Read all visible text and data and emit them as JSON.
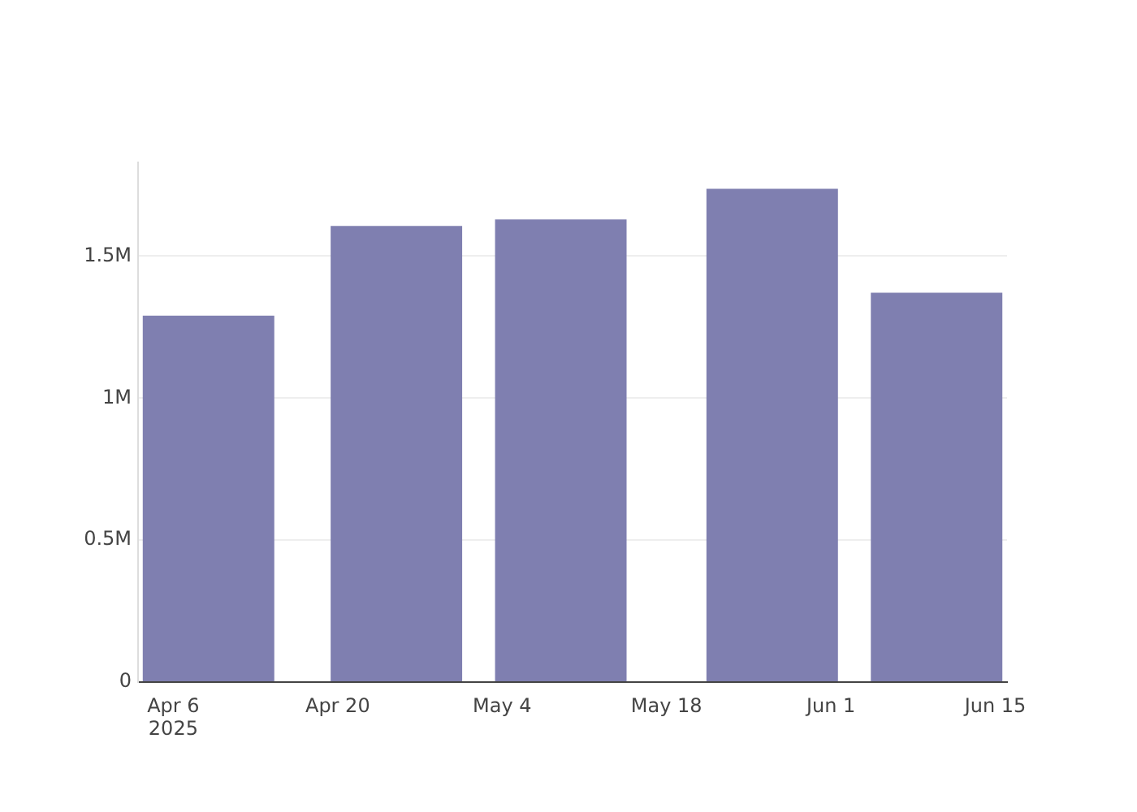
{
  "chart_data": {
    "type": "bar",
    "x": [
      "2025-04-09",
      "2025-04-25",
      "2025-05-09",
      "2025-05-27",
      "2025-06-10"
    ],
    "values": [
      1290000,
      1606000,
      1629000,
      1737000,
      1371000
    ],
    "color": "#7f7fb0",
    "xlim": [
      "2025-04-03",
      "2025-06-16"
    ],
    "xticks": [
      {
        "value": "2025-04-06",
        "label": "Apr 6\n2025"
      },
      {
        "value": "2025-04-20",
        "label": "Apr 20"
      },
      {
        "value": "2025-05-04",
        "label": "May 4"
      },
      {
        "value": "2025-05-18",
        "label": "May 18"
      },
      {
        "value": "2025-06-01",
        "label": "Jun 1"
      },
      {
        "value": "2025-06-15",
        "label": "Jun 15"
      }
    ],
    "ylim": [
      0,
      1830000
    ],
    "yticks": [
      {
        "value": 0,
        "label": "0"
      },
      {
        "value": 500000,
        "label": "0.5M"
      },
      {
        "value": 1000000,
        "label": "1M"
      },
      {
        "value": 1500000,
        "label": "1.5M"
      }
    ],
    "grid": "y"
  }
}
